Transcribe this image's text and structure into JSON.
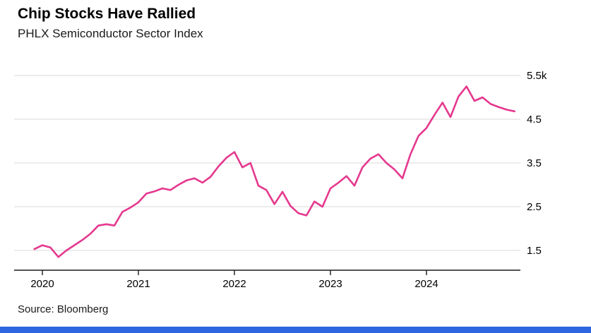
{
  "header": {
    "title": "Chip Stocks Have Rallied",
    "subtitle": "PHLX Semiconductor Sector Index"
  },
  "footer": {
    "source": "Source: Bloomberg"
  },
  "colors": {
    "line": "#e5388e",
    "grid": "#d9d9d9",
    "axis": "#1a1a1a",
    "text": "#000000",
    "bottom_bar": "#2e65e0",
    "background": "#ffffff"
  },
  "chart_data": {
    "type": "line",
    "title": "Chip Stocks Have Rallied",
    "subtitle": "PHLX Semiconductor Sector Index",
    "source": "Source: Bloomberg",
    "x_unit": "month",
    "x_start": "2019-12",
    "x_end": "2024-12",
    "x_tick_labels": [
      "2020",
      "2021",
      "2022",
      "2023",
      "2024"
    ],
    "y_ticks": [
      1.5,
      2.5,
      3.5,
      4.5,
      5.5
    ],
    "y_tick_labels": [
      "1.5",
      "2.5",
      "3.5",
      "4.5",
      "5.5k"
    ],
    "ylim": [
      1.05,
      5.75
    ],
    "grid": "horizontal",
    "legend": "none",
    "unit_note": "index level in thousands",
    "series": [
      {
        "name": "PHLX Semiconductor Sector Index (thousands)",
        "color": "#e5388e",
        "values": [
          1.53,
          1.62,
          1.57,
          1.35,
          1.5,
          1.62,
          1.74,
          1.88,
          2.07,
          2.1,
          2.07,
          2.38,
          2.48,
          2.6,
          2.8,
          2.85,
          2.92,
          2.88,
          3.0,
          3.1,
          3.15,
          3.05,
          3.18,
          3.42,
          3.62,
          3.75,
          3.4,
          3.5,
          2.98,
          2.88,
          2.56,
          2.84,
          2.52,
          2.35,
          2.3,
          2.62,
          2.5,
          2.92,
          3.05,
          3.2,
          2.98,
          3.4,
          3.6,
          3.7,
          3.5,
          3.35,
          3.15,
          3.7,
          4.12,
          4.3,
          4.6,
          4.88,
          4.55,
          5.02,
          5.25,
          4.92,
          5.0,
          4.85,
          4.78,
          4.72,
          4.68
        ]
      }
    ]
  }
}
